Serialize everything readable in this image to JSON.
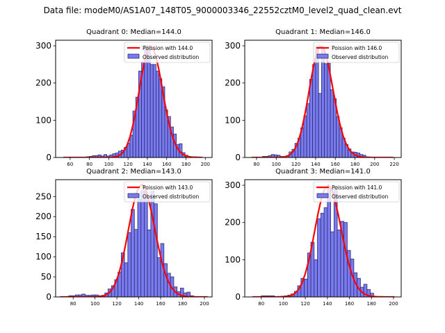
{
  "suptitle": "Data file: modeM0/AS1A07_148T05_9000003346_22552cztM0_level2_quad_clean.evt",
  "colors": {
    "bar_fill": "#7b7bf0",
    "bar_edge": "#2b2b6e",
    "curve": "#ff0000"
  },
  "chart_data": [
    {
      "type": "bar",
      "title": "Quadrant 0: Median=144.0",
      "legend": [
        "Poission with 144.0",
        "Observed distribution"
      ],
      "legend_position": "top-right",
      "xlim": [
        45,
        207
      ],
      "ylim": [
        0,
        315
      ],
      "xticks": [
        60,
        80,
        100,
        120,
        140,
        160,
        180,
        200
      ],
      "yticks": [
        0,
        100,
        200,
        300
      ],
      "bin_width": 3,
      "bin_starts": [
        77,
        80,
        83,
        86,
        89,
        92,
        95,
        98,
        101,
        104,
        107,
        110,
        113,
        116,
        119,
        122,
        125,
        128,
        131,
        134,
        137,
        140,
        143,
        146,
        149,
        152,
        155,
        158,
        161,
        164,
        167,
        170,
        173,
        176,
        179,
        182,
        185,
        188,
        191
      ],
      "values": [
        2,
        3,
        5,
        5,
        7,
        4,
        8,
        4,
        7,
        10,
        12,
        17,
        20,
        27,
        38,
        60,
        125,
        162,
        232,
        257,
        301,
        300,
        250,
        250,
        232,
        212,
        190,
        128,
        110,
        82,
        63,
        35,
        37,
        13,
        6,
        3,
        2,
        2,
        1
      ],
      "poisson_mean": 144.0,
      "poisson_peak": 300,
      "curve_x_range": [
        53,
        199
      ]
    },
    {
      "type": "bar",
      "title": "Quadrant 1: Median=146.0",
      "legend": [
        "Poission with 146.0",
        "Observed distribution"
      ],
      "legend_position": "top-right",
      "xlim": [
        68,
        227
      ],
      "ylim": [
        0,
        315
      ],
      "xticks": [
        80,
        100,
        120,
        140,
        160,
        180,
        200,
        220
      ],
      "yticks": [
        0,
        100,
        200,
        300
      ],
      "bin_width": 3,
      "bin_starts": [
        86,
        89,
        92,
        95,
        98,
        101,
        104,
        107,
        110,
        113,
        116,
        119,
        122,
        125,
        128,
        131,
        134,
        137,
        140,
        143,
        146,
        149,
        152,
        155,
        158,
        161,
        164,
        167,
        170,
        173,
        176,
        179,
        182,
        185,
        188,
        191
      ],
      "values": [
        3,
        3,
        5,
        8,
        7,
        6,
        3,
        3,
        5,
        15,
        22,
        38,
        52,
        80,
        112,
        145,
        210,
        250,
        298,
        172,
        295,
        252,
        253,
        182,
        158,
        110,
        80,
        52,
        35,
        23,
        15,
        14,
        12,
        8,
        6,
        2
      ],
      "poisson_mean": 146.0,
      "poisson_peak": 300,
      "curve_x_range": [
        75,
        219
      ]
    },
    {
      "type": "bar",
      "title": "Quadrant 2: Median=143.0",
      "legend": [
        "Poission with 143.0",
        "Observed distribution"
      ],
      "legend_position": "top-right",
      "xlim": [
        64,
        207
      ],
      "ylim": [
        0,
        292
      ],
      "xticks": [
        80,
        100,
        120,
        140,
        160,
        180,
        200
      ],
      "yticks": [
        0,
        50,
        100,
        150,
        200,
        250
      ],
      "bin_width": 3,
      "bin_starts": [
        76,
        79,
        82,
        85,
        88,
        91,
        94,
        97,
        100,
        103,
        106,
        109,
        112,
        115,
        118,
        121,
        124,
        127,
        130,
        133,
        136,
        139,
        142,
        145,
        148,
        151,
        154,
        157,
        160,
        163,
        166,
        169,
        172,
        175,
        178,
        181,
        184,
        187,
        190
      ],
      "values": [
        3,
        3,
        5,
        5,
        7,
        4,
        4,
        5,
        5,
        3,
        4,
        10,
        20,
        28,
        43,
        62,
        110,
        85,
        160,
        218,
        168,
        243,
        265,
        262,
        167,
        263,
        232,
        98,
        133,
        83,
        59,
        50,
        25,
        13,
        22,
        10,
        12,
        3,
        1
      ],
      "poisson_mean": 143.0,
      "poisson_peak": 280,
      "curve_x_range": [
        68,
        203
      ]
    },
    {
      "type": "bar",
      "title": "Quadrant 3: Median=141.0",
      "legend": [
        "Poission with 141.0",
        "Observed distribution"
      ],
      "legend_position": "top-right",
      "xlim": [
        65,
        207
      ],
      "ylim": [
        0,
        315
      ],
      "xticks": [
        80,
        100,
        120,
        140,
        160,
        180,
        200
      ],
      "yticks": [
        0,
        100,
        200,
        300
      ],
      "bin_width": 3,
      "bin_starts": [
        80,
        83,
        86,
        89,
        98,
        101,
        104,
        107,
        110,
        113,
        116,
        119,
        122,
        125,
        128,
        131,
        134,
        137,
        140,
        143,
        146,
        149,
        152,
        155,
        158,
        161,
        164,
        167,
        170,
        173,
        176,
        179
      ],
      "values": [
        3,
        3,
        3,
        3,
        2,
        3,
        5,
        8,
        15,
        30,
        50,
        48,
        118,
        147,
        100,
        210,
        225,
        240,
        297,
        175,
        297,
        180,
        203,
        200,
        125,
        102,
        65,
        50,
        26,
        34,
        20,
        10
      ],
      "poisson_mean": 141.0,
      "poisson_peak": 300,
      "curve_x_range": [
        72,
        201
      ]
    }
  ]
}
